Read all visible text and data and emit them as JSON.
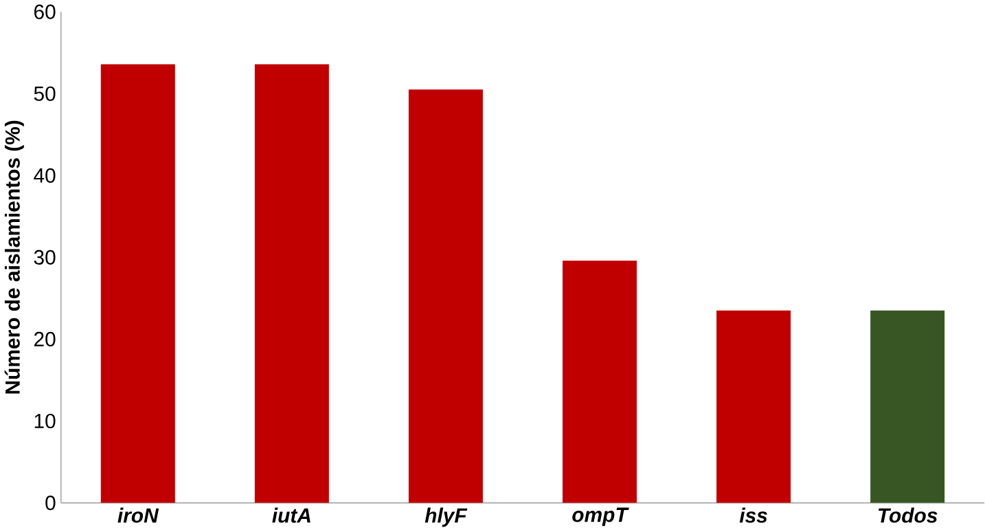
{
  "chart_data": {
    "type": "bar",
    "ylabel": "Número de aislamientos (%)",
    "categories": [
      "iroN",
      "iutA",
      "hlyF",
      "ompT",
      "iss",
      "Todos"
    ],
    "values": [
      53.6,
      53.6,
      50.5,
      29.6,
      23.5,
      23.5
    ],
    "colors": [
      "#c00000",
      "#c00000",
      "#c00000",
      "#c00000",
      "#c00000",
      "#375623"
    ],
    "ylim": [
      0,
      60
    ],
    "yticks": [
      0,
      10,
      20,
      30,
      40,
      50,
      60
    ]
  }
}
